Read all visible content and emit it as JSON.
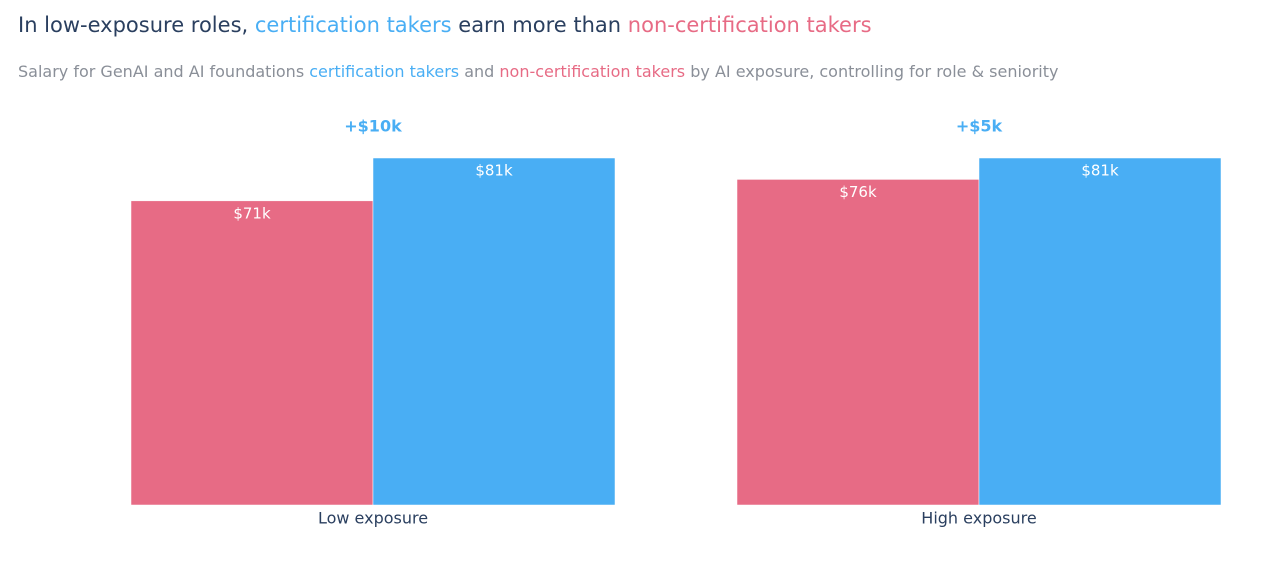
{
  "chart_data": {
    "type": "bar",
    "title": [
      {
        "text": "In low-exposure roles, ",
        "color": "#2a3f5f"
      },
      {
        "text": "certification takers",
        "color": "#49aef4"
      },
      {
        "text": " earn more than ",
        "color": "#2a3f5f"
      },
      {
        "text": "non-certification takers",
        "color": "#e76b85"
      }
    ],
    "subtitle": [
      {
        "text": "Salary for GenAI and AI foundations ",
        "color": "#8a8f98"
      },
      {
        "text": "certification takers",
        "color": "#49aef4"
      },
      {
        "text": " and ",
        "color": "#8a8f98"
      },
      {
        "text": "non-certification takers",
        "color": "#e76b85"
      },
      {
        "text": " by AI exposure, controlling for role & seniority",
        "color": "#8a8f98"
      }
    ],
    "categories": [
      "Low exposure",
      "High exposure"
    ],
    "series": [
      {
        "name": "non-certification takers",
        "color": "#e76b85",
        "values": [
          71,
          76
        ],
        "value_labels": [
          "$71k",
          "$76k"
        ]
      },
      {
        "name": "certification takers",
        "color": "#49aef4",
        "values": [
          81,
          81
        ],
        "value_labels": [
          "$81k",
          "$81k"
        ]
      }
    ],
    "annotations": [
      {
        "text": "+$10k",
        "color": "#49aef4"
      },
      {
        "text": "+$5k",
        "color": "#49aef4"
      }
    ]
  }
}
